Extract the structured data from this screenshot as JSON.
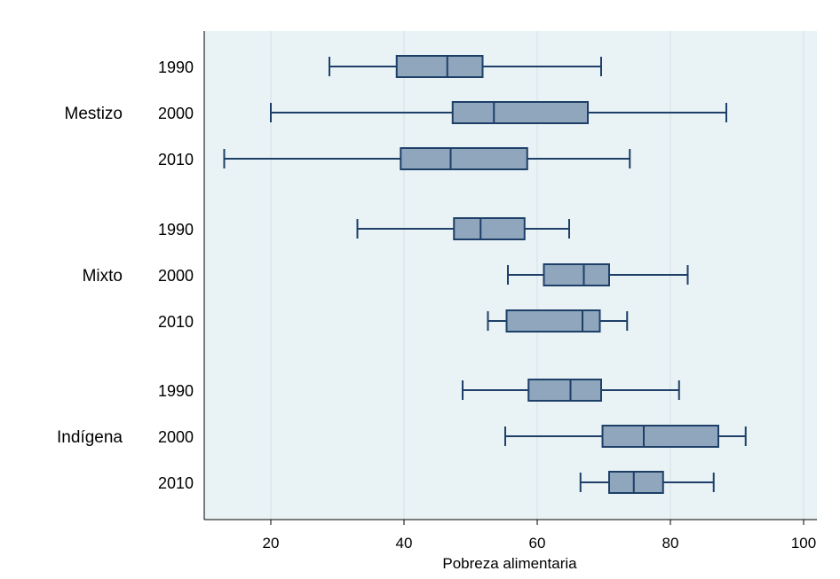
{
  "chart_data": {
    "type": "boxplot",
    "xlabel": "Pobreza alimentaria",
    "xlim": [
      10,
      102
    ],
    "xticks": [
      20,
      40,
      60,
      80,
      100
    ],
    "grid": "vertical",
    "groups": [
      {
        "name": "Mestizo",
        "boxes": [
          {
            "year": "1990",
            "min": 28.8,
            "q1": 38.9,
            "median": 46.5,
            "q3": 51.8,
            "max": 69.6
          },
          {
            "year": "2000",
            "min": 20.0,
            "q1": 47.3,
            "median": 53.5,
            "q3": 67.6,
            "max": 88.4
          },
          {
            "year": "2010",
            "min": 13.0,
            "q1": 39.5,
            "median": 47.0,
            "q3": 58.5,
            "max": 73.9
          }
        ]
      },
      {
        "name": "Mixto",
        "boxes": [
          {
            "year": "1990",
            "min": 33.0,
            "q1": 47.5,
            "median": 51.5,
            "q3": 58.1,
            "max": 64.8
          },
          {
            "year": "2000",
            "min": 55.6,
            "q1": 61.0,
            "median": 67.0,
            "q3": 70.8,
            "max": 82.6
          },
          {
            "year": "2010",
            "min": 52.6,
            "q1": 55.4,
            "median": 66.8,
            "q3": 69.4,
            "max": 73.5
          }
        ]
      },
      {
        "name": "Indígena",
        "boxes": [
          {
            "year": "1990",
            "min": 48.8,
            "q1": 58.7,
            "median": 65.0,
            "q3": 69.6,
            "max": 81.3
          },
          {
            "year": "2000",
            "min": 55.2,
            "q1": 69.8,
            "median": 76.0,
            "q3": 87.2,
            "max": 91.3
          },
          {
            "year": "2010",
            "min": 66.5,
            "q1": 70.8,
            "median": 74.5,
            "q3": 78.9,
            "max": 86.5
          }
        ]
      }
    ],
    "colors": {
      "box_fill": "#8fa6bd",
      "box_stroke": "#1e3f67",
      "plot_bg": "#e9f2f5",
      "grid": "#d8e3e8"
    }
  }
}
